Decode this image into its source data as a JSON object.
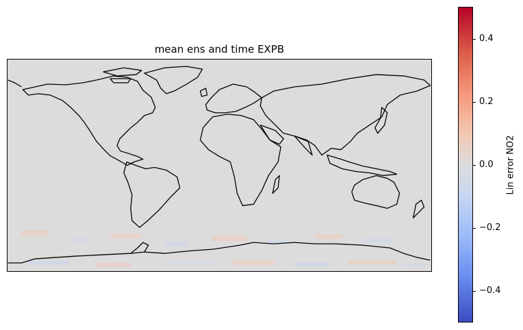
{
  "map": {
    "title": "mean ens and time EXPB",
    "projection": "PlateCarree",
    "background_color": "#dcdcdc",
    "coastline_color": "#000000",
    "field_values": "near zero everywhere, small positive/negative noise near Antarctica"
  },
  "colorbar": {
    "label": "Lin error NO2",
    "colormap": "coolwarm",
    "vmin": -0.5,
    "vmax": 0.5,
    "ticks": [
      {
        "value": 0.4,
        "label": "0.4"
      },
      {
        "value": 0.2,
        "label": "0.2"
      },
      {
        "value": 0.0,
        "label": "0.0"
      },
      {
        "value": -0.2,
        "label": "−0.2"
      },
      {
        "value": -0.4,
        "label": "−0.4"
      }
    ],
    "colors": {
      "top": "#b40426",
      "mid": "#dddddd",
      "bottom": "#3b4cc0"
    }
  }
}
